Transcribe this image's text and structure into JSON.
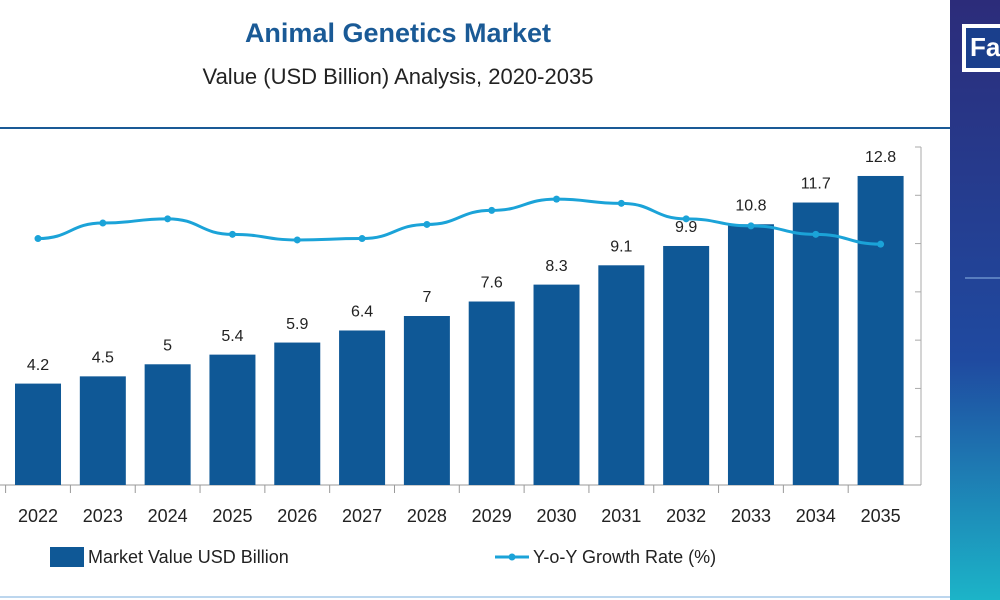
{
  "brand": "Fa",
  "chart_data": {
    "type": "bar-line",
    "title": "Animal Genetics Market",
    "subtitle": "Value (USD Billion) Analysis, 2020-2035",
    "categories": [
      "2022",
      "2023",
      "2024",
      "2025",
      "2026",
      "2027",
      "2028",
      "2029",
      "2030",
      "2031",
      "2032",
      "2033",
      "2034",
      "2035"
    ],
    "series": [
      {
        "name": "Market Value USD Billion",
        "type": "bar",
        "color": "#0f5896",
        "values": [
          4.2,
          4.5,
          5.0,
          5.4,
          5.9,
          6.4,
          7.0,
          7.6,
          8.3,
          9.1,
          9.9,
          10.8,
          11.7,
          12.8
        ]
      },
      {
        "name": "Y-o-Y Growth Rate (%)",
        "type": "line",
        "axis": "y2",
        "color": "#1ba3d8",
        "values": [
          7.5,
          8.6,
          8.9,
          7.8,
          7.4,
          7.5,
          8.5,
          9.5,
          10.3,
          10.0,
          8.9,
          8.4,
          7.8,
          7.1
        ]
      }
    ],
    "ylim": [
      0,
      14
    ],
    "yticks": [
      0,
      2,
      4,
      6,
      8,
      10,
      12,
      14
    ],
    "y2lim": [
      -10,
      14
    ],
    "grid": false
  }
}
